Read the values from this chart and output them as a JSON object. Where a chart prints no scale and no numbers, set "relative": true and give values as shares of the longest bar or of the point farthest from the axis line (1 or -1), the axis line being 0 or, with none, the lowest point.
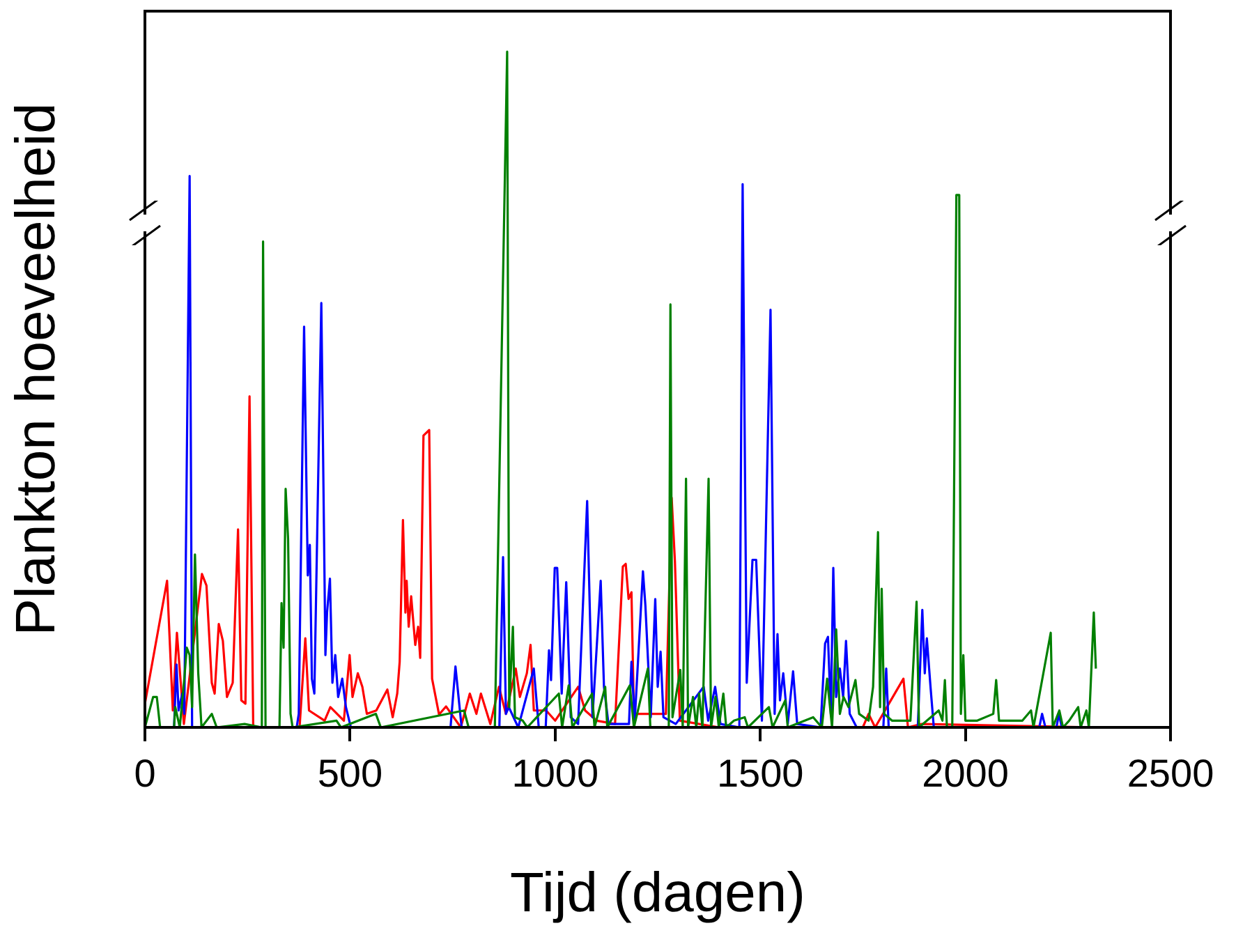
{
  "chart_data": {
    "type": "line",
    "xlabel": "Tijd (dagen)",
    "ylabel": "Plankton hoeveelheid",
    "relative": true,
    "xlim": [
      0,
      2500
    ],
    "xticks": [
      0,
      500,
      1000,
      1500,
      2000,
      2500
    ],
    "series": [
      {
        "color": "#ff0000",
        "x": [
          0,
          54,
          68,
          78,
          95,
          139,
          150,
          163,
          170,
          180,
          190,
          200,
          214,
          227,
          235,
          245,
          255,
          264,
          377,
          391,
          400,
          438,
          452,
          485,
          499,
          506,
          519,
          530,
          541,
          564,
          591,
          604,
          615,
          621,
          629,
          635,
          638,
          643,
          649,
          659,
          666,
          671,
          679,
          693,
          700,
          717,
          734,
          770,
          792,
          808,
          819,
          842,
          863,
          880,
          904,
          914,
          931,
          940,
          948,
          978,
          1000,
          1056,
          1073,
          1101,
          1146,
          1165,
          1172,
          1179,
          1186,
          1192,
          1226,
          1270,
          1284,
          1292,
          1304,
          1351,
          1400,
          1750,
          1764,
          1780,
          1849,
          1860,
          1894,
          2320
        ],
        "values": [
          0.035,
          0.217,
          0.025,
          0.14,
          0.005,
          0.227,
          0.21,
          0.066,
          0.05,
          0.153,
          0.128,
          0.045,
          0.066,
          0.293,
          0.04,
          0.035,
          0.49,
          0,
          0,
          0.132,
          0.025,
          0.01,
          0.03,
          0.01,
          0.107,
          0.045,
          0.08,
          0.06,
          0.02,
          0.025,
          0.056,
          0.015,
          0.05,
          0.097,
          0.307,
          0.17,
          0.217,
          0.149,
          0.194,
          0.122,
          0.149,
          0.103,
          0.432,
          0.44,
          0.072,
          0.019,
          0.031,
          0,
          0.05,
          0.02,
          0.05,
          0.005,
          0.06,
          0.02,
          0.087,
          0.045,
          0.08,
          0.122,
          0.025,
          0.025,
          0.01,
          0.06,
          0.025,
          0.01,
          0.005,
          0.238,
          0.242,
          0.19,
          0.2,
          0.02,
          0.02,
          0.02,
          0.34,
          0.245,
          0.01,
          0.005,
          0,
          0,
          0.02,
          0,
          0.072,
          0,
          0.005,
          0
        ]
      },
      {
        "color": "#0000ff",
        "x": [
          0,
          71,
          77,
          82,
          91,
          96,
          109,
          115,
          370,
          375,
          388,
          397,
          402,
          407,
          413,
          430,
          440,
          444,
          451,
          457,
          464,
          471,
          481,
          490,
          502,
          745,
          757,
          772,
          864,
          873,
          880,
          887,
          910,
          948,
          960,
          977,
          985,
          990,
          999,
          1005,
          1016,
          1027,
          1038,
          1056,
          1078,
          1091,
          1111,
          1119,
          1130,
          1180,
          1186,
          1194,
          1214,
          1220,
          1233,
          1244,
          1250,
          1257,
          1264,
          1294,
          1362,
          1373,
          1390,
          1403,
          1449,
          1457,
          1467,
          1481,
          1490,
          1504,
          1525,
          1535,
          1542,
          1548,
          1556,
          1567,
          1580,
          1590,
          1647,
          1658,
          1665,
          1672,
          1678,
          1685,
          1694,
          1702,
          1709,
          1718,
          1735,
          1800,
          1807,
          1813,
          1884,
          1895,
          1901,
          1906,
          1915,
          1923,
          2180,
          2187,
          2195,
          2222,
          2228,
          2235
        ],
        "values": [
          0,
          0,
          0.093,
          0.025,
          0.05,
          0.02,
          0.816,
          0,
          0,
          0.02,
          0.593,
          0.225,
          0.27,
          0.072,
          0.05,
          0.628,
          0.107,
          0.17,
          0.22,
          0.066,
          0.107,
          0.045,
          0.072,
          0.03,
          0,
          0,
          0.09,
          0,
          0,
          0.252,
          0.02,
          0.03,
          0,
          0.087,
          0,
          0,
          0.114,
          0.07,
          0.236,
          0.236,
          0.05,
          0.215,
          0.015,
          0.005,
          0.335,
          0.015,
          0.217,
          0.06,
          0.005,
          0.005,
          0.097,
          0.01,
          0.231,
          0.18,
          0.015,
          0.19,
          0.06,
          0.112,
          0.015,
          0.005,
          0.06,
          0.01,
          0.06,
          0.005,
          0,
          0.804,
          0.066,
          0.248,
          0.248,
          0.01,
          0.618,
          0.02,
          0.138,
          0.04,
          0.08,
          0.005,
          0.083,
          0.005,
          0,
          0.124,
          0.134,
          0.02,
          0.236,
          0.045,
          0.087,
          0.045,
          0.128,
          0.02,
          0,
          0,
          0.087,
          0,
          0,
          0.174,
          0.08,
          0.132,
          0.06,
          0,
          0,
          0.02,
          0,
          0,
          0.02,
          0
        ]
      },
      {
        "color": "#008000",
        "x": [
          0,
          20,
          29,
          37,
          71,
          74,
          85,
          96,
          102,
          109,
          115,
          122,
          130,
          138,
          163,
          175,
          243,
          285,
          288,
          294,
          328,
          333,
          338,
          343,
          349,
          355,
          360,
          467,
          478,
          563,
          575,
          778,
          789,
          853,
          883,
          888,
          897,
          902,
          921,
          932,
          1009,
          1017,
          1033,
          1042,
          1090,
          1096,
          1122,
          1127,
          1182,
          1192,
          1226,
          1232,
          1277,
          1281,
          1286,
          1305,
          1311,
          1319,
          1324,
          1336,
          1344,
          1351,
          1359,
          1374,
          1380,
          1391,
          1399,
          1410,
          1417,
          1436,
          1462,
          1470,
          1521,
          1530,
          1561,
          1567,
          1629,
          1650,
          1663,
          1675,
          1685,
          1694,
          1703,
          1715,
          1732,
          1741,
          1764,
          1775,
          1787,
          1792,
          1796,
          1802,
          1821,
          1866,
          1881,
          1887,
          1935,
          1944,
          1950,
          1955,
          1968,
          1978,
          1985,
          1989,
          1995,
          2000,
          2029,
          2068,
          2075,
          2082,
          2139,
          2160,
          2166,
          2208,
          2213,
          2229,
          2238,
          2253,
          2275,
          2281,
          2295,
          2301,
          2313,
          2318
        ],
        "values": [
          0,
          0.045,
          0.045,
          0,
          0,
          0.03,
          0,
          0.072,
          0.118,
          0.107,
          0.03,
          0.256,
          0.08,
          0,
          0.02,
          0,
          0.005,
          0,
          0.719,
          0,
          0,
          0.184,
          0.118,
          0.353,
          0.279,
          0.02,
          0,
          0.01,
          0,
          0.02,
          0,
          0.025,
          0,
          0,
          1,
          0.03,
          0.149,
          0.015,
          0.01,
          0,
          0.05,
          0,
          0.062,
          0,
          0.05,
          0,
          0.06,
          0,
          0.062,
          0,
          0.087,
          0,
          0,
          0.626,
          0.015,
          0.085,
          0,
          0.368,
          0,
          0.045,
          0,
          0.05,
          0,
          0.368,
          0,
          0.045,
          0,
          0.05,
          0,
          0.01,
          0.015,
          0,
          0.03,
          0,
          0.04,
          0,
          0.015,
          0,
          0.072,
          0,
          0.145,
          0.02,
          0.045,
          0.03,
          0.07,
          0.02,
          0.01,
          0.06,
          0.289,
          0.03,
          0.205,
          0.02,
          0.01,
          0.01,
          0.186,
          0,
          0.025,
          0.01,
          0.07,
          0,
          0,
          0.788,
          0.788,
          0.02,
          0.107,
          0.01,
          0.01,
          0.02,
          0.07,
          0.01,
          0.01,
          0.025,
          0,
          0.14,
          0,
          0.025,
          0,
          0.01,
          0.03,
          0,
          0.025,
          0,
          0.17,
          0.087
        ]
      }
    ]
  }
}
